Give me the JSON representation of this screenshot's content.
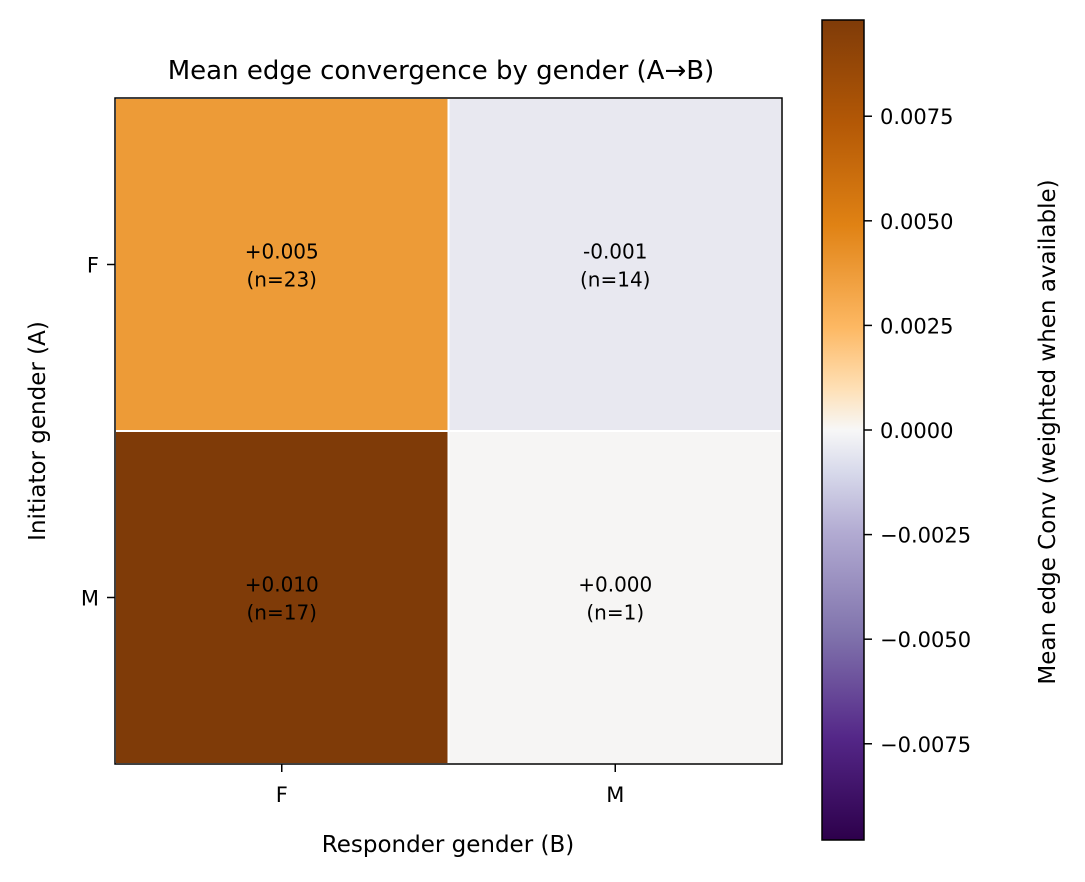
{
  "chart_data": {
    "type": "heatmap",
    "title": "Mean edge convergence by gender (A→B)",
    "xlabel": "Responder gender (B)",
    "ylabel": "Initiator gender (A)",
    "x_categories": [
      "F",
      "M"
    ],
    "y_categories": [
      "F",
      "M"
    ],
    "values": [
      [
        0.005,
        -0.001
      ],
      [
        0.01,
        0.0
      ]
    ],
    "cell_labels": [
      [
        {
          "value": "+0.005",
          "count": "(n=23)"
        },
        {
          "value": "-0.001",
          "count": "(n=14)"
        }
      ],
      [
        {
          "value": "+0.010",
          "count": "(n=17)"
        },
        {
          "value": "+0.000",
          "count": "(n=1)"
        }
      ]
    ],
    "cell_colors": [
      [
        "#ed9b37",
        "#e8e8f0"
      ],
      [
        "#7f3b08",
        "#f6f5f4"
      ]
    ],
    "colorbar": {
      "label": "Mean edge Conv (weighted when available)",
      "range": [
        -0.0098,
        0.0098
      ],
      "ticks": [
        0.0075,
        0.005,
        0.0025,
        0.0,
        -0.0025,
        -0.005,
        -0.0075
      ],
      "tick_labels": [
        "0.0075",
        "0.0050",
        "0.0025",
        "0.0000",
        "−0.0025",
        "−0.0050",
        "−0.0075"
      ],
      "colormap": "PuOr_r",
      "stops": [
        {
          "offset": 0.0,
          "color": "#7f3b08"
        },
        {
          "offset": 0.125,
          "color": "#b35806"
        },
        {
          "offset": 0.25,
          "color": "#e08214"
        },
        {
          "offset": 0.375,
          "color": "#fdb863"
        },
        {
          "offset": 0.45,
          "color": "#fee0b6"
        },
        {
          "offset": 0.5,
          "color": "#f7f7f7"
        },
        {
          "offset": 0.55,
          "color": "#d8daeb"
        },
        {
          "offset": 0.625,
          "color": "#b2abd2"
        },
        {
          "offset": 0.75,
          "color": "#8073ac"
        },
        {
          "offset": 0.875,
          "color": "#542788"
        },
        {
          "offset": 1.0,
          "color": "#2d004b"
        }
      ]
    }
  }
}
